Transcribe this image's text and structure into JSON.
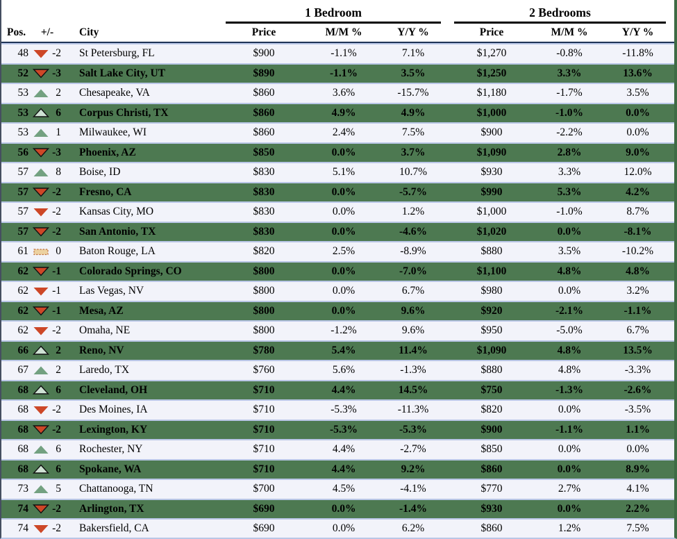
{
  "chart_data": {
    "type": "table",
    "header": {
      "pos": "Pos.",
      "delta": "+/-",
      "city": "City",
      "groups": [
        {
          "label": "1 Bedroom",
          "columns": [
            "Price",
            "M/M %",
            "Y/Y %"
          ]
        },
        {
          "label": "2 Bedrooms",
          "columns": [
            "Price",
            "M/M %",
            "Y/Y %"
          ]
        }
      ]
    },
    "rows": [
      {
        "pos": "48",
        "icon": "down-triangle",
        "delta": "-2",
        "city": "St Petersburg, FL",
        "br1": [
          "$900",
          "-1.1%",
          "7.1%"
        ],
        "br2": [
          "$1,270",
          "-0.8%",
          "-11.8%"
        ]
      },
      {
        "pos": "52",
        "icon": "down-triangle",
        "delta": "-3",
        "city": "Salt Lake City, UT",
        "br1": [
          "$890",
          "-1.1%",
          "3.5%"
        ],
        "br2": [
          "$1,250",
          "3.3%",
          "13.6%"
        ]
      },
      {
        "pos": "53",
        "icon": "up-triangle",
        "delta": "2",
        "city": "Chesapeake, VA",
        "br1": [
          "$860",
          "3.6%",
          "-15.7%"
        ],
        "br2": [
          "$1,180",
          "-1.7%",
          "3.5%"
        ]
      },
      {
        "pos": "53",
        "icon": "up-triangle",
        "delta": "6",
        "city": "Corpus Christi, TX",
        "br1": [
          "$860",
          "4.9%",
          "4.9%"
        ],
        "br2": [
          "$1,000",
          "-1.0%",
          "0.0%"
        ]
      },
      {
        "pos": "53",
        "icon": "up-triangle",
        "delta": "1",
        "city": "Milwaukee, WI",
        "br1": [
          "$860",
          "2.4%",
          "7.5%"
        ],
        "br2": [
          "$900",
          "-2.2%",
          "0.0%"
        ]
      },
      {
        "pos": "56",
        "icon": "down-triangle",
        "delta": "-3",
        "city": "Phoenix, AZ",
        "br1": [
          "$850",
          "0.0%",
          "3.7%"
        ],
        "br2": [
          "$1,090",
          "2.8%",
          "9.0%"
        ]
      },
      {
        "pos": "57",
        "icon": "up-triangle",
        "delta": "8",
        "city": "Boise, ID",
        "br1": [
          "$830",
          "5.1%",
          "10.7%"
        ],
        "br2": [
          "$930",
          "3.3%",
          "12.0%"
        ]
      },
      {
        "pos": "57",
        "icon": "down-triangle",
        "delta": "-2",
        "city": "Fresno, CA",
        "br1": [
          "$830",
          "0.0%",
          "-5.7%"
        ],
        "br2": [
          "$990",
          "5.3%",
          "4.2%"
        ]
      },
      {
        "pos": "57",
        "icon": "down-triangle",
        "delta": "-2",
        "city": "Kansas City, MO",
        "br1": [
          "$830",
          "0.0%",
          "1.2%"
        ],
        "br2": [
          "$1,000",
          "-1.0%",
          "8.7%"
        ]
      },
      {
        "pos": "57",
        "icon": "down-triangle",
        "delta": "-2",
        "city": "San Antonio, TX",
        "br1": [
          "$830",
          "0.0%",
          "-4.6%"
        ],
        "br2": [
          "$1,020",
          "0.0%",
          "-8.1%"
        ]
      },
      {
        "pos": "61",
        "icon": "flat-bar",
        "delta": "0",
        "city": "Baton Rouge, LA",
        "br1": [
          "$820",
          "2.5%",
          "-8.9%"
        ],
        "br2": [
          "$880",
          "3.5%",
          "-10.2%"
        ]
      },
      {
        "pos": "62",
        "icon": "down-triangle",
        "delta": "-1",
        "city": "Colorado Springs, CO",
        "br1": [
          "$800",
          "0.0%",
          "-7.0%"
        ],
        "br2": [
          "$1,100",
          "4.8%",
          "4.8%"
        ]
      },
      {
        "pos": "62",
        "icon": "down-triangle",
        "delta": "-1",
        "city": "Las Vegas, NV",
        "br1": [
          "$800",
          "0.0%",
          "6.7%"
        ],
        "br2": [
          "$980",
          "0.0%",
          "3.2%"
        ]
      },
      {
        "pos": "62",
        "icon": "down-triangle",
        "delta": "-1",
        "city": "Mesa, AZ",
        "br1": [
          "$800",
          "0.0%",
          "9.6%"
        ],
        "br2": [
          "$920",
          "-2.1%",
          "-1.1%"
        ]
      },
      {
        "pos": "62",
        "icon": "down-triangle",
        "delta": "-2",
        "city": "Omaha, NE",
        "br1": [
          "$800",
          "-1.2%",
          "9.6%"
        ],
        "br2": [
          "$950",
          "-5.0%",
          "6.7%"
        ]
      },
      {
        "pos": "66",
        "icon": "up-triangle",
        "delta": "2",
        "city": "Reno, NV",
        "br1": [
          "$780",
          "5.4%",
          "11.4%"
        ],
        "br2": [
          "$1,090",
          "4.8%",
          "13.5%"
        ]
      },
      {
        "pos": "67",
        "icon": "up-triangle",
        "delta": "2",
        "city": "Laredo, TX",
        "br1": [
          "$760",
          "5.6%",
          "-1.3%"
        ],
        "br2": [
          "$880",
          "4.8%",
          "-3.3%"
        ]
      },
      {
        "pos": "68",
        "icon": "up-triangle",
        "delta": "6",
        "city": "Cleveland, OH",
        "br1": [
          "$710",
          "4.4%",
          "14.5%"
        ],
        "br2": [
          "$750",
          "-1.3%",
          "-2.6%"
        ]
      },
      {
        "pos": "68",
        "icon": "down-triangle",
        "delta": "-2",
        "city": "Des Moines, IA",
        "br1": [
          "$710",
          "-5.3%",
          "-11.3%"
        ],
        "br2": [
          "$820",
          "0.0%",
          "-3.5%"
        ]
      },
      {
        "pos": "68",
        "icon": "down-triangle",
        "delta": "-2",
        "city": "Lexington, KY",
        "br1": [
          "$710",
          "-5.3%",
          "-5.3%"
        ],
        "br2": [
          "$900",
          "-1.1%",
          "1.1%"
        ]
      },
      {
        "pos": "68",
        "icon": "up-triangle",
        "delta": "6",
        "city": "Rochester, NY",
        "br1": [
          "$710",
          "4.4%",
          "-2.7%"
        ],
        "br2": [
          "$850",
          "0.0%",
          "0.0%"
        ]
      },
      {
        "pos": "68",
        "icon": "up-triangle",
        "delta": "6",
        "city": "Spokane, WA",
        "br1": [
          "$710",
          "4.4%",
          "9.2%"
        ],
        "br2": [
          "$860",
          "0.0%",
          "8.9%"
        ]
      },
      {
        "pos": "73",
        "icon": "up-triangle",
        "delta": "5",
        "city": "Chattanooga, TN",
        "br1": [
          "$700",
          "4.5%",
          "-4.1%"
        ],
        "br2": [
          "$770",
          "2.7%",
          "4.1%"
        ]
      },
      {
        "pos": "74",
        "icon": "down-triangle",
        "delta": "-2",
        "city": "Arlington, TX",
        "br1": [
          "$690",
          "0.0%",
          "-1.4%"
        ],
        "br2": [
          "$930",
          "0.0%",
          "2.2%"
        ]
      },
      {
        "pos": "74",
        "icon": "down-triangle",
        "delta": "-2",
        "city": "Bakersfield, CA",
        "br1": [
          "$690",
          "0.0%",
          "6.2%"
        ],
        "br2": [
          "$860",
          "1.2%",
          "7.5%"
        ]
      }
    ]
  },
  "colors": {
    "row_green": "#4d7951",
    "row_light": "#f2f3fa",
    "row_border": "#b9c6e6",
    "header_rule": "#000000",
    "header_bottom_rule": "#1e3356",
    "triangle_red": "#cd4727",
    "triangle_green": "#73a181",
    "triangle_pale_fill": "#cfe2d4",
    "flat_fill": "#ecd1a0",
    "flat_border": "#c0703c"
  }
}
